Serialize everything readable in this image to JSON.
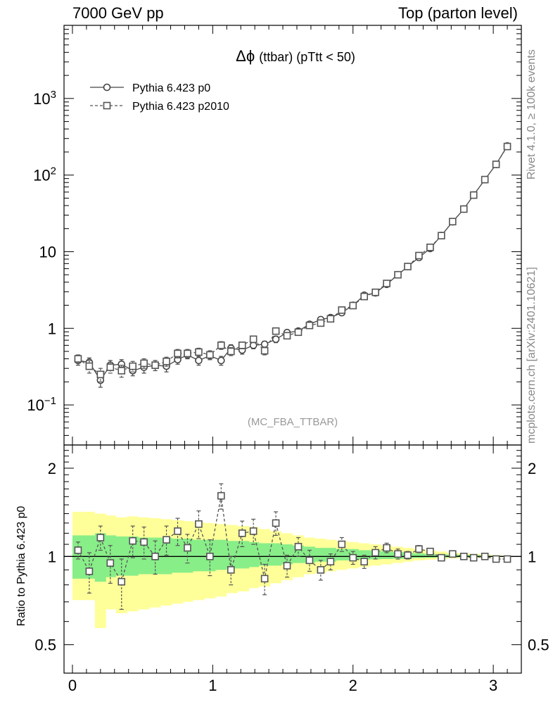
{
  "header": {
    "left": "7000 GeV pp",
    "right": "Top (parton level)"
  },
  "side_labels": {
    "rivet": "Rivet 4.1.0, ≥ 100k events",
    "mcplots": "mcplots.cern.ch [arXiv:2401.10621]"
  },
  "colors": {
    "band_outer": "#ffff99",
    "band_inner": "#88ee88",
    "line_p0": "#444444",
    "line_p2010": "#555555"
  },
  "chart_data": [
    {
      "type": "line",
      "panel": "main",
      "title_prefix": "Δϕ",
      "title": "(ttbar) (pTtt < 50)",
      "analysis": "(MC_FBA_TTBAR)",
      "yscale": "log",
      "ylim": [
        0.03,
        9000
      ],
      "xlim": [
        -0.06,
        3.2
      ],
      "ytick_labels": [
        {
          "value": 0.1,
          "base": "10",
          "exp": "−1"
        },
        {
          "value": 1,
          "base": "1",
          "exp": ""
        },
        {
          "value": 10,
          "base": "10",
          "exp": ""
        },
        {
          "value": 100,
          "base": "10",
          "exp": "2"
        },
        {
          "value": 1000,
          "base": "10",
          "exp": "3"
        }
      ],
      "x": [
        0.04,
        0.12,
        0.2,
        0.27,
        0.35,
        0.43,
        0.51,
        0.59,
        0.67,
        0.75,
        0.82,
        0.9,
        0.98,
        1.06,
        1.13,
        1.21,
        1.29,
        1.37,
        1.45,
        1.53,
        1.61,
        1.69,
        1.77,
        1.84,
        1.92,
        2.0,
        2.08,
        2.16,
        2.24,
        2.32,
        2.39,
        2.47,
        2.55,
        2.63,
        2.71,
        2.79,
        2.86,
        2.94,
        3.02,
        3.1
      ],
      "series": [
        {
          "name": "Pythia 6.423 p0",
          "marker": "circle",
          "dash": "solid",
          "values": [
            0.38,
            0.36,
            0.21,
            0.33,
            0.34,
            0.28,
            0.31,
            0.33,
            0.32,
            0.39,
            0.45,
            0.38,
            0.44,
            0.38,
            0.55,
            0.52,
            0.6,
            0.62,
            0.72,
            0.88,
            0.92,
            1.13,
            1.3,
            1.38,
            1.6,
            2.0,
            2.7,
            2.9,
            3.75,
            5.0,
            6.4,
            8.4,
            11.0,
            16.3,
            24.5,
            36.0,
            55.0,
            87.0,
            138.0,
            240.0
          ],
          "errors": [
            0.05,
            0.05,
            0.04,
            0.05,
            0.05,
            0.04,
            0.05,
            0.05,
            0.05,
            0.05,
            0.05,
            0.05,
            0.05,
            0.05,
            0.06,
            0.06,
            0.06,
            0.06,
            0.07,
            0.07,
            0.07,
            0.08,
            0.09,
            0.09,
            0.1,
            0.1,
            0.12,
            0.12,
            0.15,
            0.18,
            0.2,
            0.25,
            0.3,
            0.4,
            0.5,
            0.7,
            0.9,
            1.2,
            1.6,
            2.5
          ]
        },
        {
          "name": "Pythia 6.423 p2010",
          "marker": "square",
          "dash": "dashed",
          "values": [
            0.4,
            0.32,
            0.25,
            0.31,
            0.28,
            0.32,
            0.35,
            0.33,
            0.37,
            0.47,
            0.47,
            0.49,
            0.45,
            0.6,
            0.5,
            0.6,
            0.72,
            0.51,
            0.92,
            0.8,
            0.89,
            1.09,
            1.17,
            1.33,
            1.73,
            1.98,
            2.6,
            2.95,
            3.85,
            5.0,
            6.4,
            8.9,
            11.4,
            16.2,
            24.7,
            36.0,
            54.8,
            87.3,
            138.0,
            236.0
          ],
          "errors": [
            0.05,
            0.06,
            0.05,
            0.05,
            0.05,
            0.05,
            0.05,
            0.05,
            0.05,
            0.06,
            0.06,
            0.06,
            0.06,
            0.07,
            0.06,
            0.06,
            0.07,
            0.06,
            0.08,
            0.07,
            0.07,
            0.08,
            0.09,
            0.09,
            0.1,
            0.11,
            0.12,
            0.13,
            0.15,
            0.18,
            0.2,
            0.25,
            0.3,
            0.4,
            0.5,
            0.7,
            0.9,
            1.2,
            1.6,
            2.5
          ]
        }
      ]
    },
    {
      "type": "line",
      "panel": "ratio",
      "ylabel": "Ratio to Pythia 6.423 p0",
      "yscale": "log",
      "ylim": [
        0.4,
        2.4
      ],
      "xlim": [
        -0.06,
        3.2
      ],
      "ytick_labels": [
        {
          "value": 0.5,
          "label": "0.5"
        },
        {
          "value": 1,
          "label": "1"
        },
        {
          "value": 2,
          "label": "2"
        }
      ],
      "xtick_labels": [
        {
          "value": 0,
          "label": "0"
        },
        {
          "value": 1,
          "label": "1"
        },
        {
          "value": 2,
          "label": "2"
        },
        {
          "value": 3,
          "label": "3"
        }
      ],
      "bin_edges": [
        0.0,
        0.08,
        0.16,
        0.24,
        0.31,
        0.39,
        0.47,
        0.55,
        0.63,
        0.71,
        0.79,
        0.86,
        0.94,
        1.02,
        1.1,
        1.18,
        1.26,
        1.33,
        1.41,
        1.49,
        1.57,
        1.65,
        1.73,
        1.81,
        1.88,
        1.96,
        2.04,
        2.12,
        2.2,
        2.28,
        2.36,
        2.43,
        2.51,
        2.59,
        2.67,
        2.75,
        2.83,
        2.91,
        2.98,
        3.06,
        3.14
      ],
      "band_outer": {
        "low": [
          0.71,
          0.71,
          0.57,
          0.66,
          0.64,
          0.65,
          0.66,
          0.67,
          0.68,
          0.69,
          0.7,
          0.71,
          0.72,
          0.73,
          0.75,
          0.76,
          0.78,
          0.79,
          0.81,
          0.83,
          0.85,
          0.87,
          0.88,
          0.89,
          0.9,
          0.91,
          0.92,
          0.93,
          0.94,
          0.95,
          0.96,
          0.97,
          0.975,
          0.98,
          0.985,
          0.988,
          0.99,
          0.992,
          0.994,
          0.996
        ],
        "high": [
          1.42,
          1.42,
          1.4,
          1.38,
          1.36,
          1.37,
          1.36,
          1.35,
          1.34,
          1.33,
          1.32,
          1.31,
          1.3,
          1.29,
          1.28,
          1.27,
          1.26,
          1.24,
          1.22,
          1.2,
          1.18,
          1.16,
          1.15,
          1.14,
          1.13,
          1.12,
          1.11,
          1.1,
          1.09,
          1.08,
          1.07,
          1.06,
          1.05,
          1.04,
          1.03,
          1.025,
          1.02,
          1.015,
          1.01,
          1.006
        ]
      },
      "band_inner": {
        "low": [
          0.84,
          0.84,
          0.82,
          0.85,
          0.86,
          0.86,
          0.87,
          0.87,
          0.87,
          0.88,
          0.88,
          0.89,
          0.89,
          0.9,
          0.91,
          0.91,
          0.92,
          0.93,
          0.93,
          0.94,
          0.95,
          0.95,
          0.96,
          0.96,
          0.97,
          0.97,
          0.975,
          0.978,
          0.98,
          0.982,
          0.985,
          0.988,
          0.99,
          0.992,
          0.993,
          0.995,
          0.996,
          0.997,
          0.998,
          0.999
        ],
        "high": [
          1.18,
          1.18,
          1.2,
          1.18,
          1.17,
          1.17,
          1.16,
          1.16,
          1.16,
          1.15,
          1.15,
          1.14,
          1.14,
          1.14,
          1.13,
          1.13,
          1.12,
          1.11,
          1.11,
          1.1,
          1.09,
          1.08,
          1.07,
          1.07,
          1.06,
          1.06,
          1.05,
          1.05,
          1.04,
          1.035,
          1.03,
          1.025,
          1.02,
          1.018,
          1.015,
          1.012,
          1.01,
          1.008,
          1.006,
          1.004
        ]
      },
      "series": [
        {
          "name": "Pythia 6.423 p2010",
          "marker": "square",
          "dash": "dashed",
          "x": [
            0.04,
            0.12,
            0.2,
            0.27,
            0.35,
            0.43,
            0.51,
            0.59,
            0.67,
            0.75,
            0.82,
            0.9,
            0.98,
            1.06,
            1.13,
            1.21,
            1.29,
            1.37,
            1.45,
            1.53,
            1.61,
            1.69,
            1.77,
            1.84,
            1.92,
            2.0,
            2.08,
            2.16,
            2.24,
            2.32,
            2.39,
            2.47,
            2.55,
            2.63,
            2.71,
            2.79,
            2.86,
            2.94,
            3.02,
            3.1
          ],
          "values": [
            1.05,
            0.89,
            1.16,
            0.95,
            0.82,
            1.13,
            1.12,
            1.0,
            1.14,
            1.22,
            1.07,
            1.29,
            1.0,
            1.61,
            0.9,
            1.2,
            1.22,
            0.84,
            1.3,
            0.93,
            1.08,
            0.97,
            0.9,
            0.96,
            1.1,
            0.99,
            0.96,
            1.03,
            1.07,
            1.02,
            1.01,
            1.06,
            1.04,
            0.99,
            1.02,
            1.0,
            0.99,
            1.0,
            0.98,
            0.98
          ],
          "errors": [
            0.07,
            0.14,
            0.11,
            0.14,
            0.16,
            0.14,
            0.14,
            0.13,
            0.13,
            0.13,
            0.12,
            0.14,
            0.14,
            0.16,
            0.1,
            0.12,
            0.12,
            0.1,
            0.12,
            0.08,
            0.08,
            0.08,
            0.07,
            0.06,
            0.06,
            0.05,
            0.05,
            0.05,
            0.04,
            0.04,
            0.03,
            0.03,
            0.02,
            0.02,
            0.02,
            0.015,
            0.01,
            0.01,
            0.01,
            0.01
          ]
        }
      ]
    }
  ]
}
